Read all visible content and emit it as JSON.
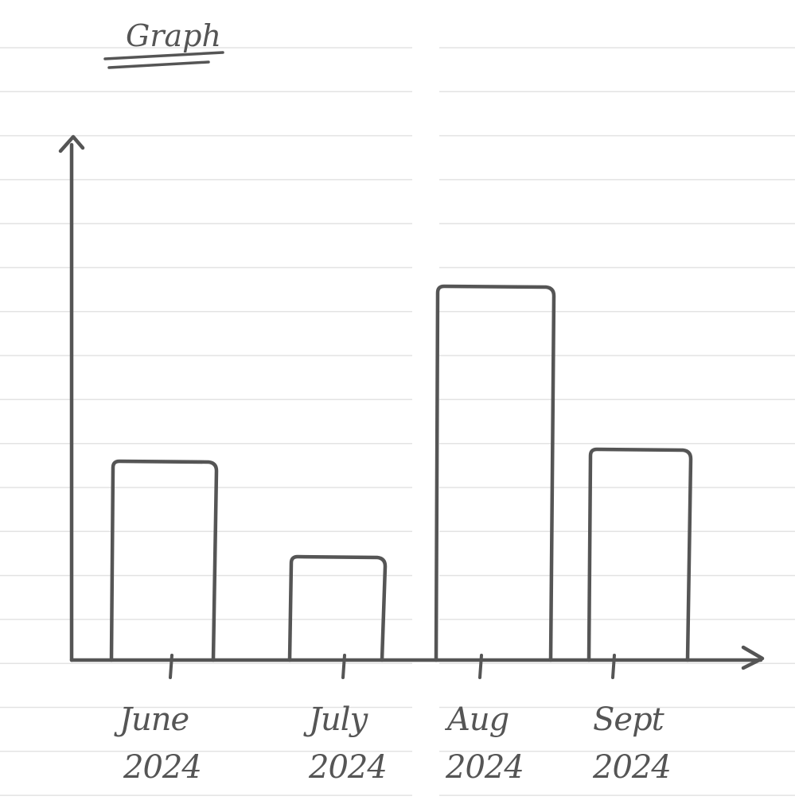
{
  "chart_data": {
    "type": "bar",
    "title": "Graph",
    "categories": [
      {
        "month": "June",
        "year": "2024"
      },
      {
        "month": "July",
        "year": "2024"
      },
      {
        "month": "Aug",
        "year": "2024"
      },
      {
        "month": "Sept",
        "year": "2024"
      }
    ],
    "values": [
      5.0,
      2.6,
      9.4,
      5.3
    ],
    "ylim": [
      0,
      13
    ],
    "xlabel": "",
    "ylabel": "",
    "grid": false,
    "style": {
      "ink": "#555555",
      "paper": "#ffffff",
      "rule": "#e3e3e3"
    }
  }
}
